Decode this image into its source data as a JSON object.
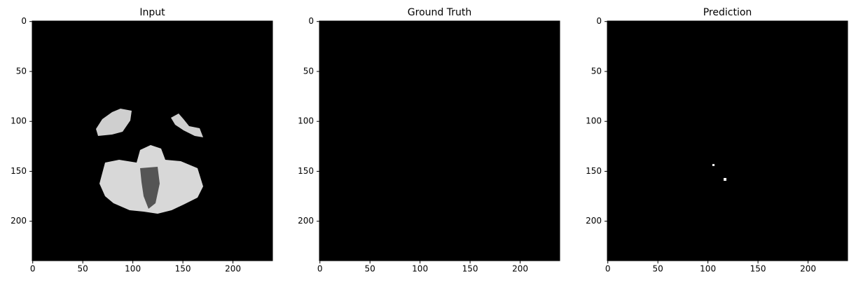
{
  "chart_data": [
    {
      "type": "image",
      "title": "Input",
      "xlim": [
        -0.5,
        239.5
      ],
      "ylim": [
        239.5,
        -0.5
      ],
      "xticks": [
        0,
        50,
        100,
        150,
        200
      ],
      "yticks": [
        0,
        50,
        100,
        150,
        200
      ]
    },
    {
      "type": "image",
      "title": "Ground Truth",
      "xlim": [
        -0.5,
        239.5
      ],
      "ylim": [
        239.5,
        -0.5
      ],
      "xticks": [
        0,
        50,
        100,
        150,
        200
      ],
      "yticks": [
        0,
        50,
        100,
        150,
        200
      ]
    },
    {
      "type": "image",
      "title": "Prediction",
      "xlim": [
        -0.5,
        239.5
      ],
      "ylim": [
        239.5,
        -0.5
      ],
      "xticks": [
        0,
        50,
        100,
        150,
        200
      ],
      "yticks": [
        0,
        50,
        100,
        150,
        200
      ]
    }
  ]
}
